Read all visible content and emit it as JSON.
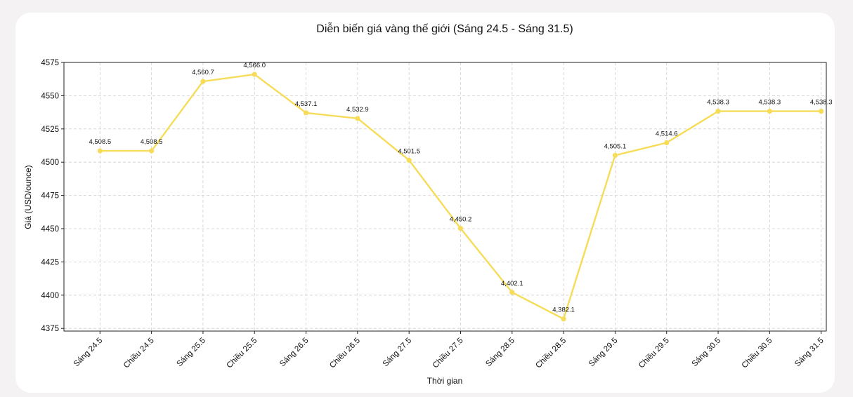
{
  "chart_data": {
    "type": "line",
    "title": "Diễn biến giá vàng thế giới (Sáng 24.5 - Sáng 31.5)",
    "xlabel": "Thời gian",
    "ylabel": "Giá (USD/ounce)",
    "categories": [
      "Sáng 24.5",
      "Chiều 24.5",
      "Sáng 25.5",
      "Chiều 25.5",
      "Sáng 26.5",
      "Chiều 26.5",
      "Sáng 27.5",
      "Chiều 27.5",
      "Sáng 28.5",
      "Chiều 28.5",
      "Sáng 29.5",
      "Chiều 29.5",
      "Sáng 30.5",
      "Chiều 30.5",
      "Sáng 31.5"
    ],
    "series": [
      {
        "values": [
          4508.5,
          4508.5,
          4560.7,
          4566.0,
          4537.1,
          4532.9,
          4501.5,
          4450.2,
          4402.1,
          4382.1,
          4505.1,
          4514.6,
          4538.3,
          4538.3,
          4538.3
        ],
        "labels": [
          "4,508.5",
          "4,508.5",
          "4,560.7",
          "4,566.0",
          "4,537.1",
          "4,532.9",
          "4,501.5",
          "4,450.2",
          "4,402.1",
          "4,382.1",
          "4,505.1",
          "4,514.6",
          "4,538.3",
          "4,538.3",
          "4,538.3"
        ]
      }
    ],
    "ylim": [
      4373,
      4575
    ],
    "yticks": [
      4375,
      4400,
      4425,
      4450,
      4475,
      4500,
      4525,
      4550,
      4575
    ],
    "grid": true,
    "line_color": "#f6dc58",
    "marker": "circle"
  }
}
